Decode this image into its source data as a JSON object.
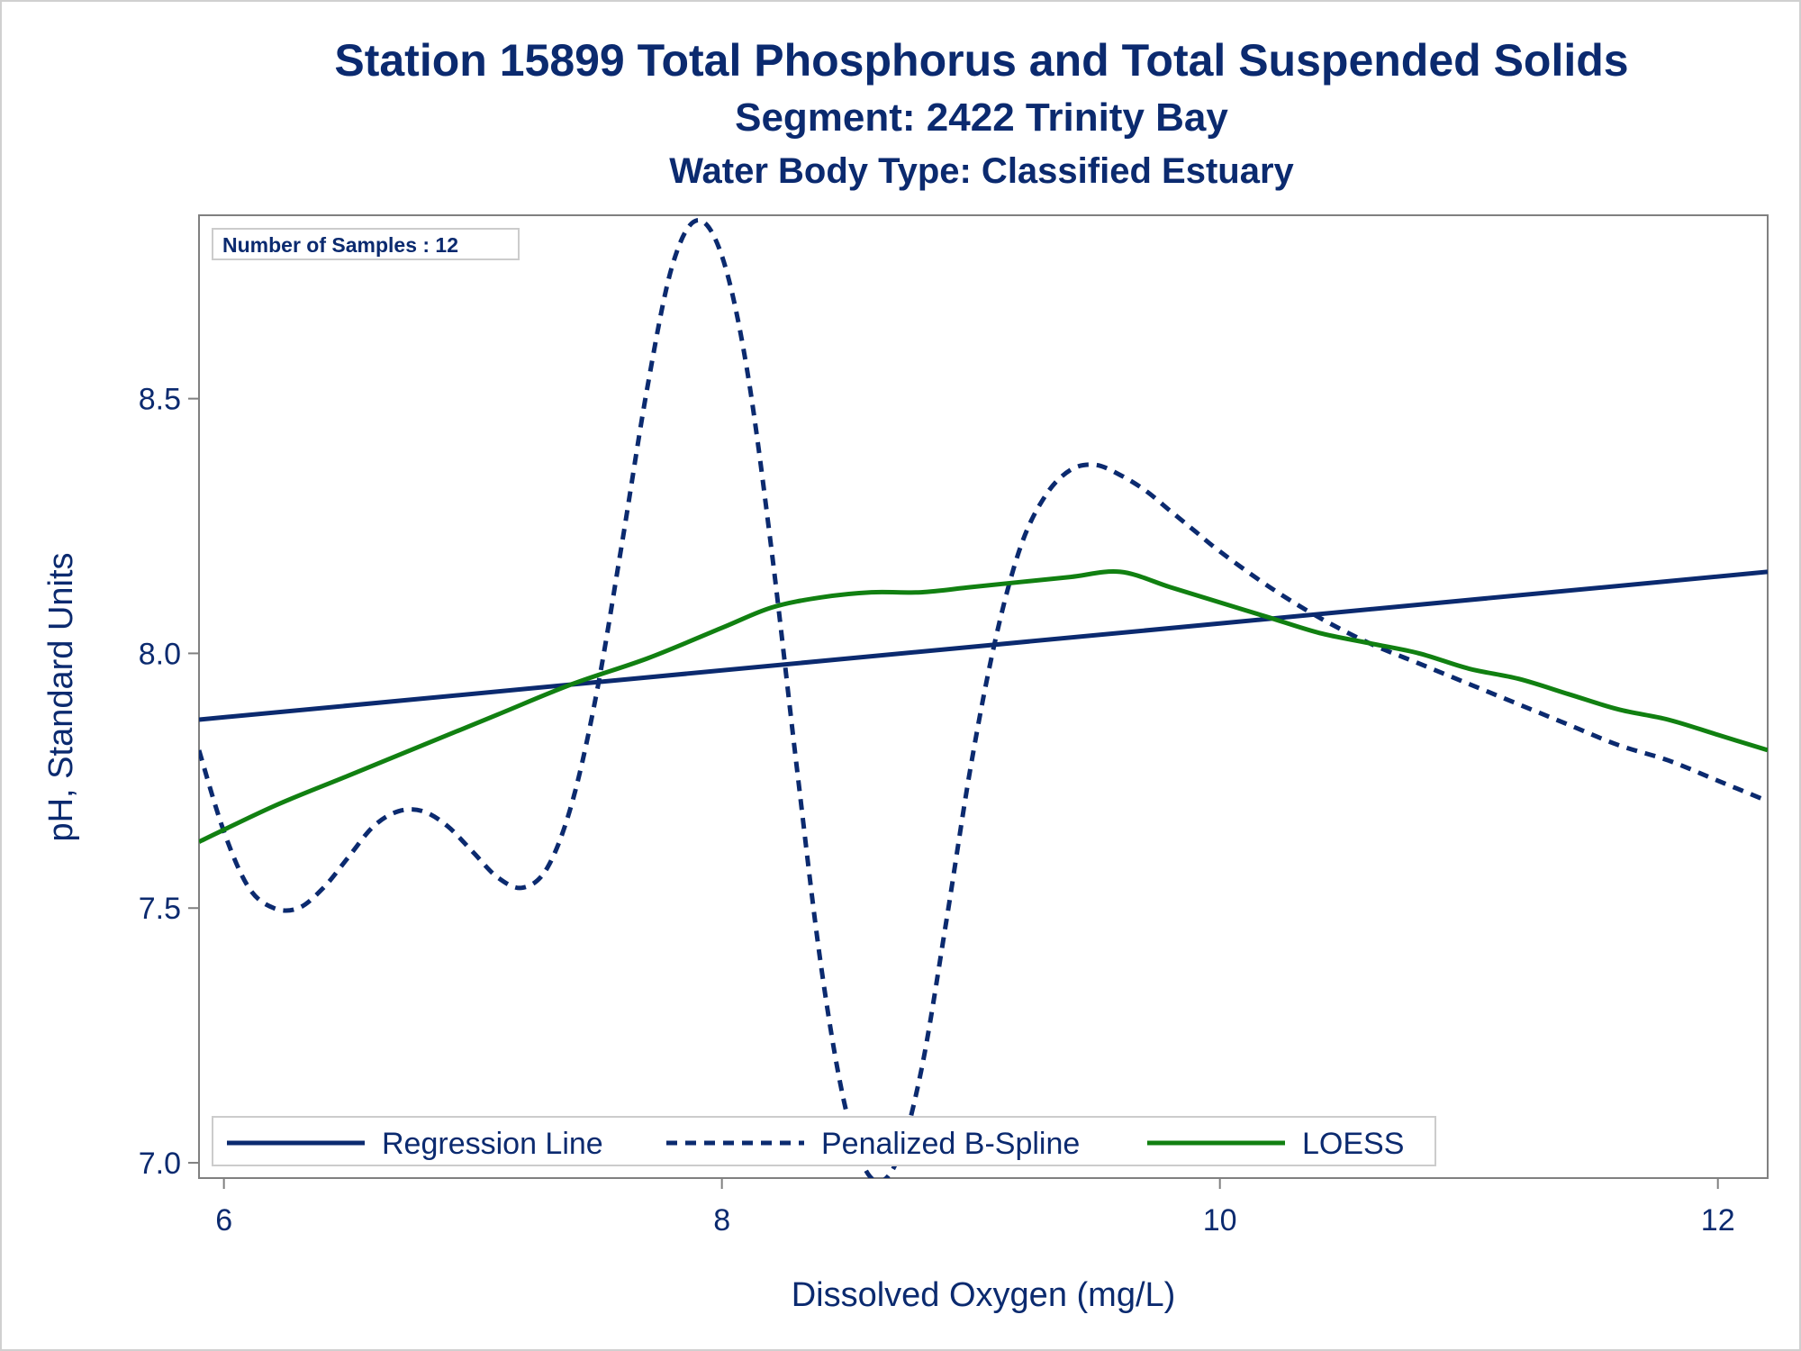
{
  "chart_data": {
    "type": "line",
    "title": "Station 15899  Total Phosphorus and Total Suspended Solids",
    "subtitle": "Segment: 2422  Trinity Bay",
    "subtitle2": "Water Body Type: Classified Estuary",
    "xlabel": "Dissolved Oxygen (mg/L)",
    "ylabel": "pH, Standard Units",
    "xlim": [
      5.9,
      12.2
    ],
    "ylim": [
      6.97,
      8.86
    ],
    "xticks": [
      6,
      8,
      10,
      12
    ],
    "yticks": [
      7.0,
      7.5,
      8.0,
      8.5
    ],
    "ytick_labels": [
      "7.0",
      "7.5",
      "8.0",
      "8.5"
    ],
    "annotation": "Number of Samples : 12",
    "legend_position": "bottom-inside",
    "grid": false,
    "series": [
      {
        "name": "Regression Line",
        "style": "solid",
        "color": "#0b2a6f",
        "x": [
          5.9,
          12.2
        ],
        "y": [
          7.87,
          8.16
        ]
      },
      {
        "name": "Penalized B-Spline",
        "style": "dashed",
        "color": "#0b2a6f",
        "x": [
          5.9,
          6.0,
          6.1,
          6.2,
          6.3,
          6.4,
          6.5,
          6.6,
          6.7,
          6.8,
          6.9,
          7.0,
          7.1,
          7.2,
          7.3,
          7.4,
          7.5,
          7.6,
          7.7,
          7.8,
          7.9,
          8.0,
          8.1,
          8.2,
          8.3,
          8.4,
          8.5,
          8.6,
          8.7,
          8.8,
          8.9,
          9.0,
          9.1,
          9.2,
          9.3,
          9.4,
          9.5,
          9.6,
          9.7,
          9.8,
          9.9,
          10.0,
          10.2,
          10.4,
          10.6,
          10.8,
          11.0,
          11.2,
          11.4,
          11.6,
          11.8,
          12.0,
          12.2
        ],
        "y": [
          7.81,
          7.65,
          7.54,
          7.5,
          7.5,
          7.54,
          7.6,
          7.66,
          7.69,
          7.69,
          7.66,
          7.61,
          7.56,
          7.54,
          7.58,
          7.71,
          7.93,
          8.22,
          8.52,
          8.76,
          8.85,
          8.78,
          8.56,
          8.2,
          7.78,
          7.38,
          7.1,
          6.97,
          7.0,
          7.18,
          7.47,
          7.78,
          8.03,
          8.21,
          8.31,
          8.36,
          8.37,
          8.35,
          8.32,
          8.28,
          8.24,
          8.2,
          8.13,
          8.07,
          8.02,
          7.98,
          7.94,
          7.9,
          7.86,
          7.82,
          7.79,
          7.75,
          7.71
        ]
      },
      {
        "name": "LOESS",
        "style": "solid",
        "color": "#118011",
        "x": [
          5.9,
          6.2,
          6.5,
          6.8,
          7.1,
          7.4,
          7.7,
          8.0,
          8.2,
          8.4,
          8.6,
          8.8,
          9.0,
          9.2,
          9.4,
          9.6,
          9.8,
          10.0,
          10.2,
          10.4,
          10.6,
          10.8,
          11.0,
          11.2,
          11.4,
          11.6,
          11.8,
          12.0,
          12.2
        ],
        "y": [
          7.63,
          7.7,
          7.76,
          7.82,
          7.88,
          7.94,
          7.99,
          8.05,
          8.09,
          8.11,
          8.12,
          8.12,
          8.13,
          8.14,
          8.15,
          8.16,
          8.13,
          8.1,
          8.07,
          8.04,
          8.02,
          8.0,
          7.97,
          7.95,
          7.92,
          7.89,
          7.87,
          7.84,
          7.81
        ]
      }
    ]
  },
  "colors": {
    "text": "#0b2a6f",
    "axis": "#808080",
    "legend_border": "#cccccc",
    "frame": "#d0d0d0"
  }
}
